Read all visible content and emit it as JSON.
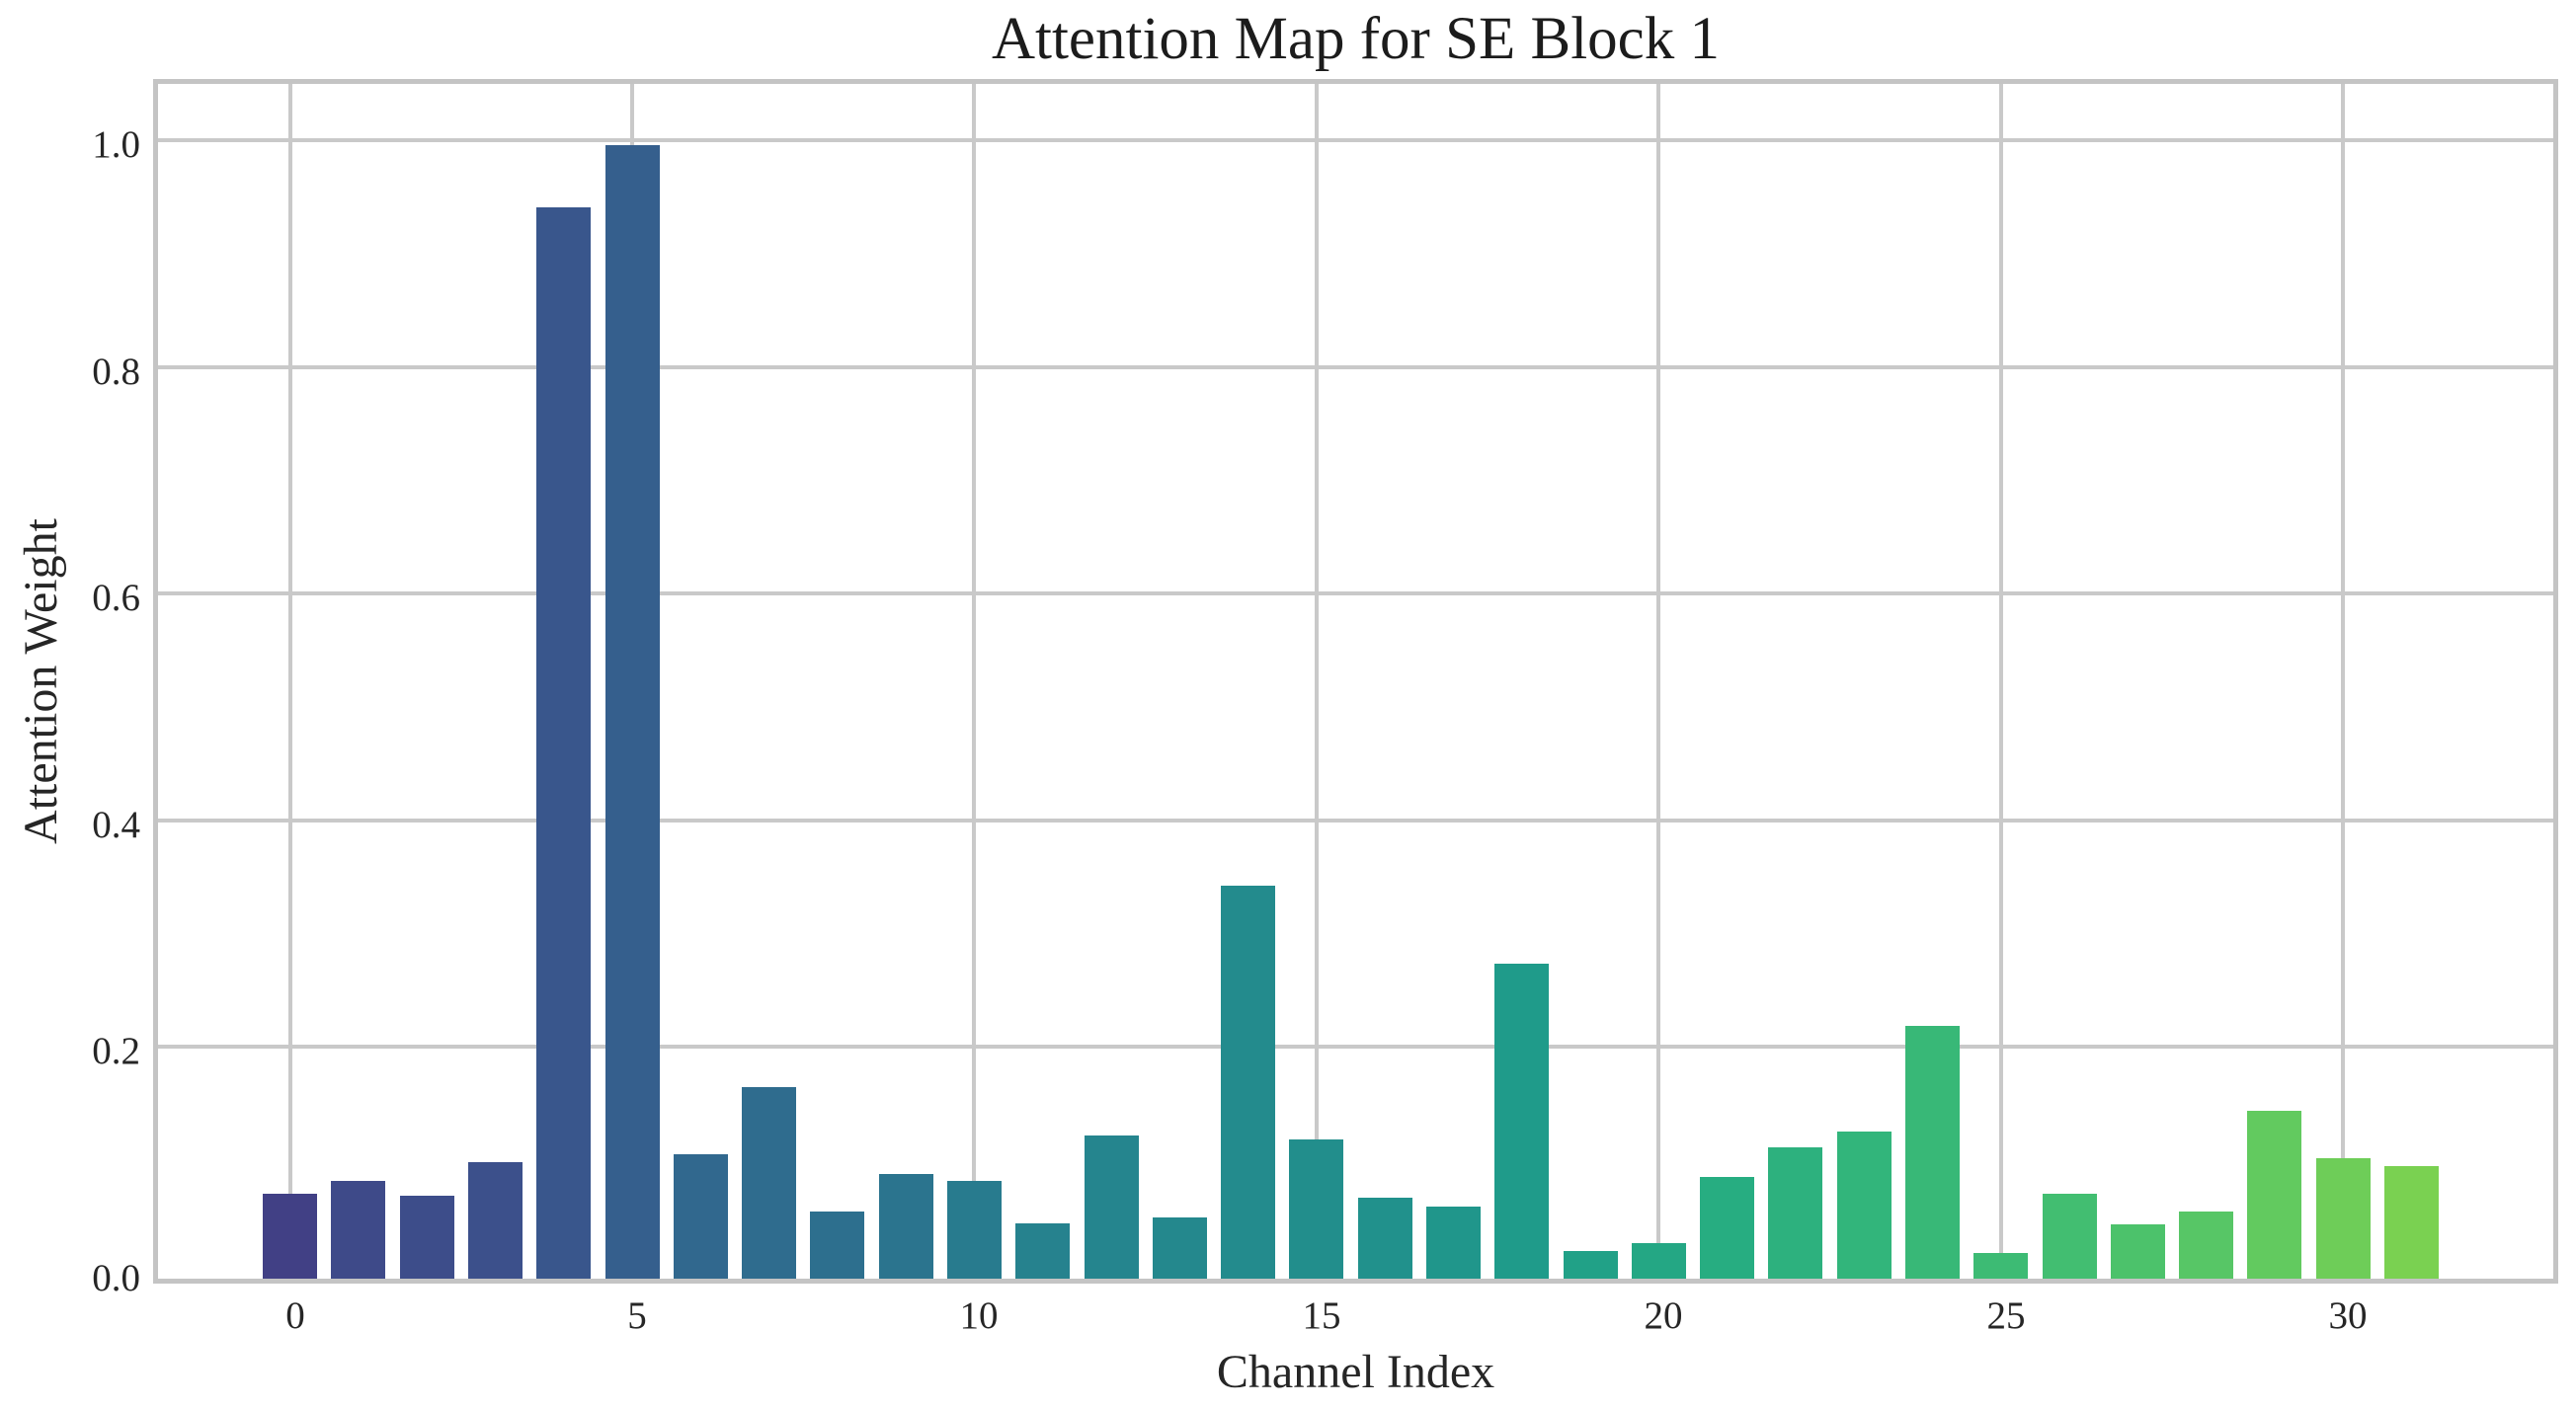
{
  "chart_data": {
    "type": "bar",
    "title": "Attention Map for SE Block 1",
    "xlabel": "Channel Index",
    "ylabel": "Attention Weight",
    "categories": [
      0,
      1,
      2,
      3,
      4,
      5,
      6,
      7,
      8,
      9,
      10,
      11,
      12,
      13,
      14,
      15,
      16,
      17,
      18,
      19,
      20,
      21,
      22,
      23,
      24,
      25,
      26,
      27,
      28,
      29,
      30,
      31
    ],
    "values": [
      0.075,
      0.086,
      0.073,
      0.103,
      0.945,
      1.0,
      0.11,
      0.169,
      0.059,
      0.092,
      0.086,
      0.049,
      0.126,
      0.054,
      0.347,
      0.123,
      0.071,
      0.064,
      0.278,
      0.024,
      0.031,
      0.09,
      0.116,
      0.13,
      0.223,
      0.023,
      0.075,
      0.048,
      0.059,
      0.148,
      0.106,
      0.099
    ],
    "bar_colors": [
      "#414085",
      "#3E4A89",
      "#3D4D8A",
      "#3C508B",
      "#39568C",
      "#355F8D",
      "#31688E",
      "#2F6C8E",
      "#2D6F8E",
      "#2B748E",
      "#287B8E",
      "#26828E",
      "#25858E",
      "#24888D",
      "#238B8D",
      "#228E8C",
      "#21918C",
      "#20968B",
      "#1F9B8A",
      "#21A187",
      "#24A784",
      "#27AD81",
      "#2DB17E",
      "#32B57B",
      "#38B877",
      "#3DBB74",
      "#42BE71",
      "#4CC26B",
      "#57C666",
      "#62CA5F",
      "#6ECD58",
      "#7AD151"
    ],
    "x_ticks": [
      {
        "value": 0,
        "label": "0"
      },
      {
        "value": 5,
        "label": "5"
      },
      {
        "value": 10,
        "label": "10"
      },
      {
        "value": 15,
        "label": "15"
      },
      {
        "value": 20,
        "label": "20"
      },
      {
        "value": 25,
        "label": "25"
      },
      {
        "value": 30,
        "label": "30"
      }
    ],
    "y_ticks": [
      {
        "value": 0.0,
        "label": "0.0"
      },
      {
        "value": 0.2,
        "label": "0.2"
      },
      {
        "value": 0.4,
        "label": "0.4"
      },
      {
        "value": 0.6,
        "label": "0.6"
      },
      {
        "value": 0.8,
        "label": "0.8"
      },
      {
        "value": 1.0,
        "label": "1.0"
      }
    ],
    "xlim": [
      -2,
      33
    ],
    "ylim": [
      0,
      1.054
    ],
    "grid": true,
    "grid_color": "#c9c9c9",
    "spine_color": "#c4c4c4",
    "background_color": "#ffffff",
    "legend": null
  }
}
